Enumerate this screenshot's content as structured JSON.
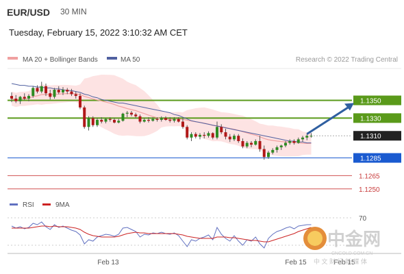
{
  "header": {
    "symbol": "EUR/USD",
    "timeframe": "30 MIN",
    "timestamp": "Tuesday, February 15, 2022 3:10:32 AM CET"
  },
  "legend": {
    "ma20_label": "MA 20 + Bollinger Bands",
    "ma50_label": "MA 50",
    "copyright": "Research © 2022 Trading Central",
    "colors": {
      "ma20": "#f0a0a0",
      "ma50": "#5060a0",
      "band_fill": "#fcdada"
    }
  },
  "rsi_legend": {
    "rsi_label": "RSI",
    "ma_label": "9MA",
    "colors": {
      "rsi": "#6070c0",
      "ma": "#cc2222"
    }
  },
  "watermark": {
    "brand": "中金网",
    "domain": "CNGOLD.COM.CN",
    "tagline": "中 文 财 经 新 媒 体"
  },
  "chart_data": {
    "type": "candlestick",
    "price_axis": {
      "ylim": [
        1.1239,
        1.1386
      ]
    },
    "x_tick_labels": [
      "Feb 13",
      "Feb 15",
      "Feb 15"
    ],
    "levels": [
      {
        "label": "1.1350",
        "value": 1.135,
        "color": "#5a9a1a",
        "style": "resistance"
      },
      {
        "label": "1.1330",
        "value": 1.133,
        "color": "#5a9a1a",
        "style": "resistance"
      },
      {
        "label": "1.1310",
        "value": 1.131,
        "color": "#222222",
        "style": "last-price"
      },
      {
        "label": "1.1285",
        "value": 1.1285,
        "color": "#1a5ad0",
        "style": "pivot"
      },
      {
        "label": "1.1265",
        "value": 1.1265,
        "color": "#d05050",
        "style": "support"
      },
      {
        "label": "1.1250",
        "value": 1.125,
        "color": "#d05050",
        "style": "support"
      }
    ],
    "candles": [
      [
        1.1355,
        1.1359,
        1.1348,
        1.1352
      ],
      [
        1.1352,
        1.1356,
        1.1347,
        1.1349
      ],
      [
        1.1349,
        1.1355,
        1.1346,
        1.1354
      ],
      [
        1.1354,
        1.1358,
        1.135,
        1.1352
      ],
      [
        1.1352,
        1.1357,
        1.1349,
        1.1355
      ],
      [
        1.1355,
        1.1366,
        1.1353,
        1.1364
      ],
      [
        1.1364,
        1.1367,
        1.1358,
        1.136
      ],
      [
        1.136,
        1.1371,
        1.1358,
        1.1366
      ],
      [
        1.1366,
        1.1369,
        1.1355,
        1.1358
      ],
      [
        1.1358,
        1.1362,
        1.1351,
        1.1354
      ],
      [
        1.1354,
        1.1364,
        1.1352,
        1.1362
      ],
      [
        1.1362,
        1.1366,
        1.1357,
        1.1359
      ],
      [
        1.1359,
        1.1365,
        1.1356,
        1.1362
      ],
      [
        1.1362,
        1.1364,
        1.1357,
        1.136
      ],
      [
        1.136,
        1.1363,
        1.1355,
        1.1357
      ],
      [
        1.1357,
        1.136,
        1.1352,
        1.1355
      ],
      [
        1.1355,
        1.1358,
        1.134,
        1.1342
      ],
      [
        1.1342,
        1.1344,
        1.1318,
        1.132
      ],
      [
        1.132,
        1.1332,
        1.1316,
        1.133
      ],
      [
        1.133,
        1.1332,
        1.132,
        1.1322
      ],
      [
        1.1322,
        1.133,
        1.132,
        1.1328
      ],
      [
        1.1328,
        1.1331,
        1.1324,
        1.1326
      ],
      [
        1.1326,
        1.133,
        1.1324,
        1.1329
      ],
      [
        1.1329,
        1.1331,
        1.1326,
        1.1328
      ],
      [
        1.1328,
        1.133,
        1.1324,
        1.1325
      ],
      [
        1.1325,
        1.1329,
        1.1324,
        1.1327
      ],
      [
        1.1327,
        1.1336,
        1.1326,
        1.1335
      ],
      [
        1.1335,
        1.1338,
        1.1331,
        1.1336
      ],
      [
        1.1336,
        1.1338,
        1.1332,
        1.1334
      ],
      [
        1.1334,
        1.1336,
        1.133,
        1.1332
      ],
      [
        1.1332,
        1.1334,
        1.1324,
        1.1326
      ],
      [
        1.1326,
        1.133,
        1.1325,
        1.1328
      ],
      [
        1.1328,
        1.1331,
        1.1325,
        1.1327
      ],
      [
        1.1327,
        1.1331,
        1.1326,
        1.1329
      ],
      [
        1.1329,
        1.1331,
        1.1326,
        1.1328
      ],
      [
        1.1328,
        1.1332,
        1.1326,
        1.133
      ],
      [
        1.133,
        1.1332,
        1.1327,
        1.1328
      ],
      [
        1.1328,
        1.1331,
        1.1325,
        1.1327
      ],
      [
        1.1327,
        1.1331,
        1.1325,
        1.1329
      ],
      [
        1.1329,
        1.1331,
        1.1325,
        1.1326
      ],
      [
        1.1326,
        1.133,
        1.1318,
        1.132
      ],
      [
        1.132,
        1.1322,
        1.1306,
        1.1308
      ],
      [
        1.1308,
        1.1314,
        1.1304,
        1.1312
      ],
      [
        1.1312,
        1.1314,
        1.1307,
        1.1309
      ],
      [
        1.1309,
        1.1313,
        1.1306,
        1.1311
      ],
      [
        1.1311,
        1.1314,
        1.1307,
        1.131
      ],
      [
        1.131,
        1.1315,
        1.1308,
        1.1313
      ],
      [
        1.1313,
        1.1314,
        1.1306,
        1.1308
      ],
      [
        1.1308,
        1.1326,
        1.1306,
        1.132
      ],
      [
        1.132,
        1.1323,
        1.1312,
        1.1314
      ],
      [
        1.1314,
        1.1318,
        1.1306,
        1.1309
      ],
      [
        1.1309,
        1.1312,
        1.1303,
        1.1306
      ],
      [
        1.1306,
        1.1312,
        1.1304,
        1.131
      ],
      [
        1.131,
        1.1312,
        1.1302,
        1.1304
      ],
      [
        1.1304,
        1.1307,
        1.1296,
        1.1298
      ],
      [
        1.1298,
        1.1304,
        1.1296,
        1.1302
      ],
      [
        1.1302,
        1.1304,
        1.1297,
        1.13
      ],
      [
        1.13,
        1.1306,
        1.1299,
        1.1304
      ],
      [
        1.1304,
        1.131,
        1.1292,
        1.1295
      ],
      [
        1.1295,
        1.1299,
        1.1283,
        1.1286
      ],
      [
        1.1286,
        1.1293,
        1.1284,
        1.1291
      ],
      [
        1.1291,
        1.1296,
        1.1289,
        1.1294
      ],
      [
        1.1294,
        1.1299,
        1.1291,
        1.1297
      ],
      [
        1.1297,
        1.13,
        1.1294,
        1.1299
      ],
      [
        1.1299,
        1.1304,
        1.1297,
        1.1302
      ],
      [
        1.1302,
        1.1306,
        1.13,
        1.1304
      ],
      [
        1.1304,
        1.1306,
        1.13,
        1.1302
      ],
      [
        1.1302,
        1.1308,
        1.1301,
        1.1306
      ],
      [
        1.1306,
        1.131,
        1.1303,
        1.1308
      ],
      [
        1.1308,
        1.1312,
        1.1305,
        1.131
      ],
      [
        1.131,
        1.1313,
        1.1308,
        1.131
      ]
    ],
    "ma50": [
      1.1369,
      1.1368,
      1.1367,
      1.1367,
      1.1366,
      1.1366,
      1.1365,
      1.1365,
      1.1364,
      1.1364,
      1.1363,
      1.1363,
      1.1362,
      1.1361,
      1.1361,
      1.136,
      1.1359,
      1.1357,
      1.1356,
      1.1354,
      1.1353,
      1.1351,
      1.135,
      1.1349,
      1.1348,
      1.1347,
      1.1347,
      1.1346,
      1.1345,
      1.1344,
      1.1343,
      1.1342,
      1.1341,
      1.134,
      1.1339,
      1.1338,
      1.1337,
      1.1336,
      1.1334,
      1.1333,
      1.1331,
      1.1329,
      1.1327,
      1.1326,
      1.1325,
      1.1324,
      1.1323,
      1.1322,
      1.1321,
      1.132,
      1.1319,
      1.1318,
      1.1317,
      1.1316,
      1.1315,
      1.1314,
      1.1313,
      1.1312,
      1.1311,
      1.131,
      1.1309,
      1.1308,
      1.1307,
      1.1306,
      1.1305,
      1.1304,
      1.1304,
      1.1303,
      1.1303,
      1.1302,
      1.1302
    ],
    "forecast_arrow": {
      "from": [
        69,
        1.1312
      ],
      "to": [
        80,
        1.1347
      ]
    },
    "rsi_axis": {
      "ylim": [
        20,
        80
      ],
      "tick_labels": [
        {
          "value": 70,
          "label": "70"
        }
      ]
    },
    "rsi": [
      58,
      55,
      57,
      54,
      56,
      62,
      60,
      64,
      57,
      53,
      60,
      56,
      58,
      55,
      52,
      50,
      45,
      32,
      38,
      36,
      42,
      44,
      46,
      45,
      43,
      46,
      55,
      56,
      53,
      50,
      42,
      46,
      45,
      48,
      47,
      49,
      47,
      46,
      48,
      44,
      36,
      28,
      38,
      36,
      40,
      42,
      45,
      38,
      56,
      46,
      40,
      36,
      44,
      36,
      30,
      38,
      36,
      42,
      32,
      26,
      40,
      46,
      50,
      52,
      55,
      57,
      54,
      58,
      59,
      60,
      60
    ],
    "rsi_ma": [
      55,
      55,
      55,
      55,
      55,
      56,
      57,
      58,
      58,
      57,
      58,
      57,
      57,
      57,
      56,
      55,
      53,
      49,
      46,
      44,
      43,
      42,
      42,
      42,
      42,
      43,
      45,
      47,
      48,
      49,
      48,
      48,
      47,
      47,
      47,
      47,
      47,
      47,
      47,
      46,
      45,
      43,
      42,
      41,
      40,
      40,
      40,
      40,
      42,
      42,
      42,
      41,
      41,
      40,
      39,
      38,
      37,
      37,
      36,
      35,
      35,
      37,
      39,
      41,
      43,
      45,
      47,
      50,
      52,
      54,
      56
    ]
  }
}
